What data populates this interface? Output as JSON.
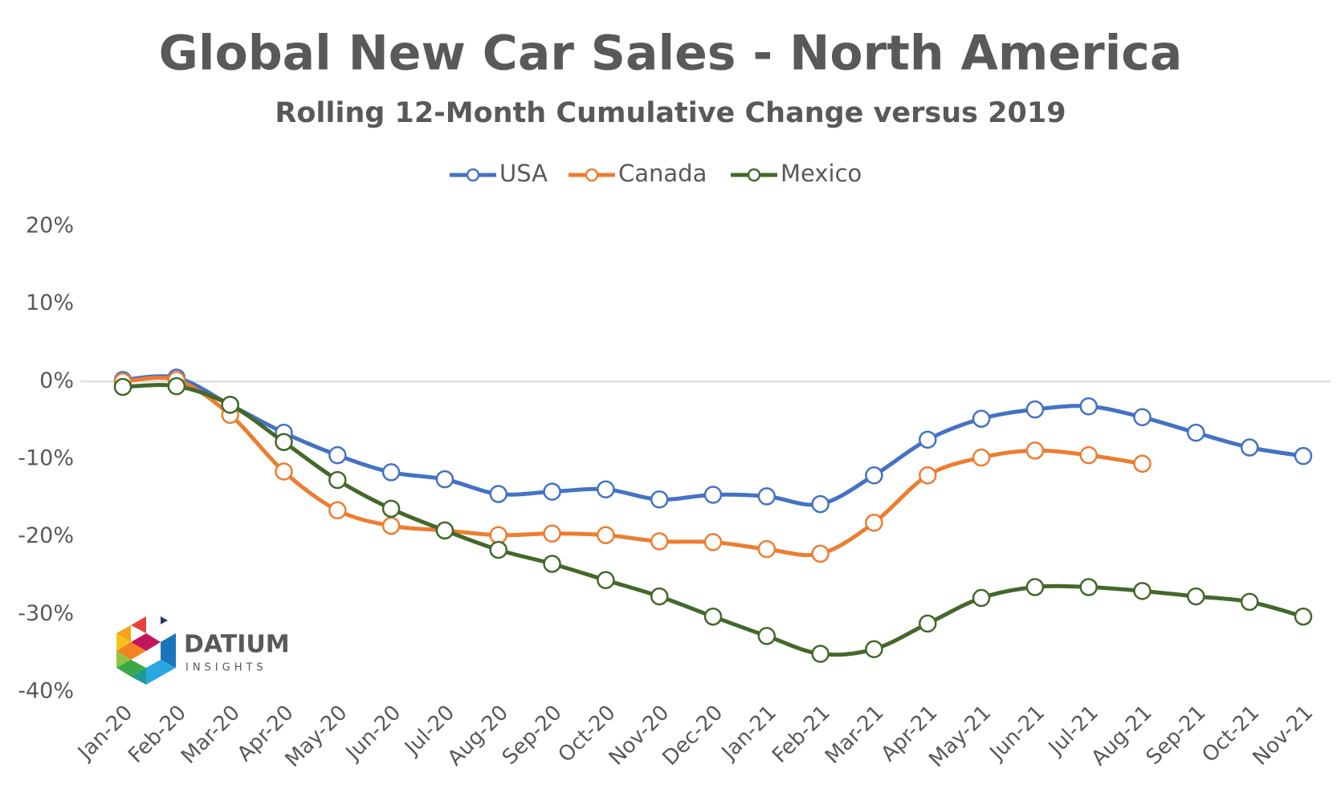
{
  "chart_data": {
    "type": "line",
    "title": "Global New Car Sales - North America",
    "subtitle": "Rolling 12-Month Cumulative Change versus 2019",
    "categories": [
      "Jan-20",
      "Feb-20",
      "Mar-20",
      "Apr-20",
      "May-20",
      "Jun-20",
      "Jul-20",
      "Aug-20",
      "Sep-20",
      "Oct-20",
      "Nov-20",
      "Dec-20",
      "Jan-21",
      "Feb-21",
      "Mar-21",
      "Apr-21",
      "May-21",
      "Jun-21",
      "Jul-21",
      "Aug-21",
      "Sep-21",
      "Oct-21",
      "Nov-21"
    ],
    "series": [
      {
        "name": "USA",
        "color": "#4472c4",
        "values": [
          0.2,
          0.5,
          -3,
          -6.6,
          -9.5,
          -11.7,
          -12.6,
          -14.5,
          -14.2,
          -13.9,
          -15.2,
          -14.6,
          -14.8,
          -15.8,
          -12.1,
          -7.5,
          -4.8,
          -3.6,
          -3.2,
          -4.6,
          -6.6,
          -8.5,
          -9.6
        ]
      },
      {
        "name": "Canada",
        "color": "#ed7d31",
        "values": [
          0,
          0.2,
          -4.3,
          -11.6,
          -16.6,
          -18.6,
          -19.2,
          -19.8,
          -19.6,
          -19.8,
          -20.6,
          -20.7,
          -21.6,
          -22.2,
          -18.2,
          -12.1,
          -9.8,
          -8.9,
          -9.5,
          -10.6,
          null,
          null,
          null
        ]
      },
      {
        "name": "Mexico",
        "color": "#43682b",
        "values": [
          -0.7,
          -0.6,
          -3,
          -7.8,
          -12.7,
          -16.4,
          -19.2,
          -21.7,
          -23.5,
          -25.6,
          -27.7,
          -30.3,
          -32.8,
          -35.1,
          -34.5,
          -31.2,
          -27.9,
          -26.5,
          -26.5,
          -27,
          -27.7,
          -28.4,
          -30.3
        ]
      }
    ],
    "ylim": [
      -40,
      20
    ],
    "yticks": [
      {
        "value": 20,
        "label": "20%"
      },
      {
        "value": 10,
        "label": "10%"
      },
      {
        "value": 0,
        "label": "0%"
      },
      {
        "value": -10,
        "label": "-10%"
      },
      {
        "value": -20,
        "label": "-20%"
      },
      {
        "value": -30,
        "label": "-30%"
      },
      {
        "value": -40,
        "label": "-40%"
      }
    ],
    "grid": false,
    "smooth": true,
    "legend": "top"
  },
  "logo": {
    "name": "DATIUM",
    "tagline": "INSIGHTS"
  }
}
